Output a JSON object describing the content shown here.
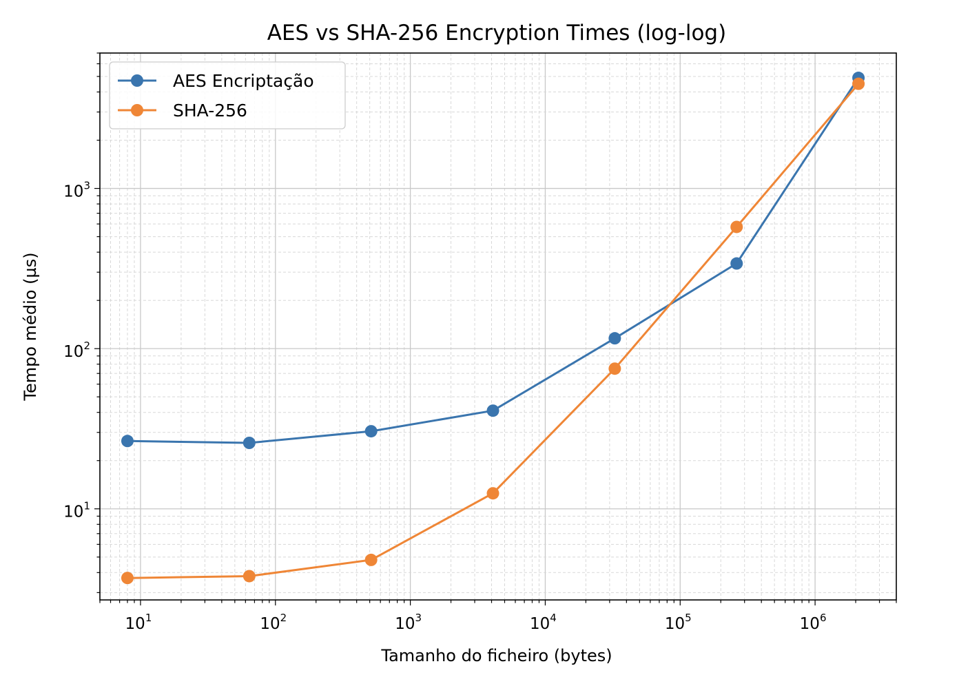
{
  "chart_data": {
    "type": "line",
    "title": "AES vs SHA-256 Encryption Times (log-log)",
    "xlabel": "Tamanho do ficheiro (bytes)",
    "ylabel": "Tempo médio (µs)",
    "xscale": "log",
    "yscale": "log",
    "xlim": [
      5,
      4000000
    ],
    "ylim": [
      2.7,
      7000
    ],
    "grid": "both (major solid, minor dashed)",
    "legend": "top-left",
    "x": [
      8,
      64,
      512,
      4096,
      32768,
      262144,
      2097152
    ],
    "x_ticks": [
      {
        "value": 10,
        "base": "10",
        "exp": "1"
      },
      {
        "value": 100,
        "base": "10",
        "exp": "2"
      },
      {
        "value": 1000,
        "base": "10",
        "exp": "3"
      },
      {
        "value": 10000,
        "base": "10",
        "exp": "4"
      },
      {
        "value": 100000,
        "base": "10",
        "exp": "5"
      },
      {
        "value": 1000000,
        "base": "10",
        "exp": "6"
      }
    ],
    "y_ticks": [
      {
        "value": 10,
        "base": "10",
        "exp": "1"
      },
      {
        "value": 100,
        "base": "10",
        "exp": "2"
      },
      {
        "value": 1000,
        "base": "10",
        "exp": "3"
      }
    ],
    "series": [
      {
        "name": "AES Encriptação",
        "color": "#3a75ae",
        "values": [
          26.5,
          25.8,
          30.5,
          41,
          116,
          340,
          4900
        ]
      },
      {
        "name": "SHA-256",
        "color": "#ef8636",
        "values": [
          3.7,
          3.8,
          4.8,
          12.5,
          75,
          575,
          4500
        ]
      }
    ]
  }
}
